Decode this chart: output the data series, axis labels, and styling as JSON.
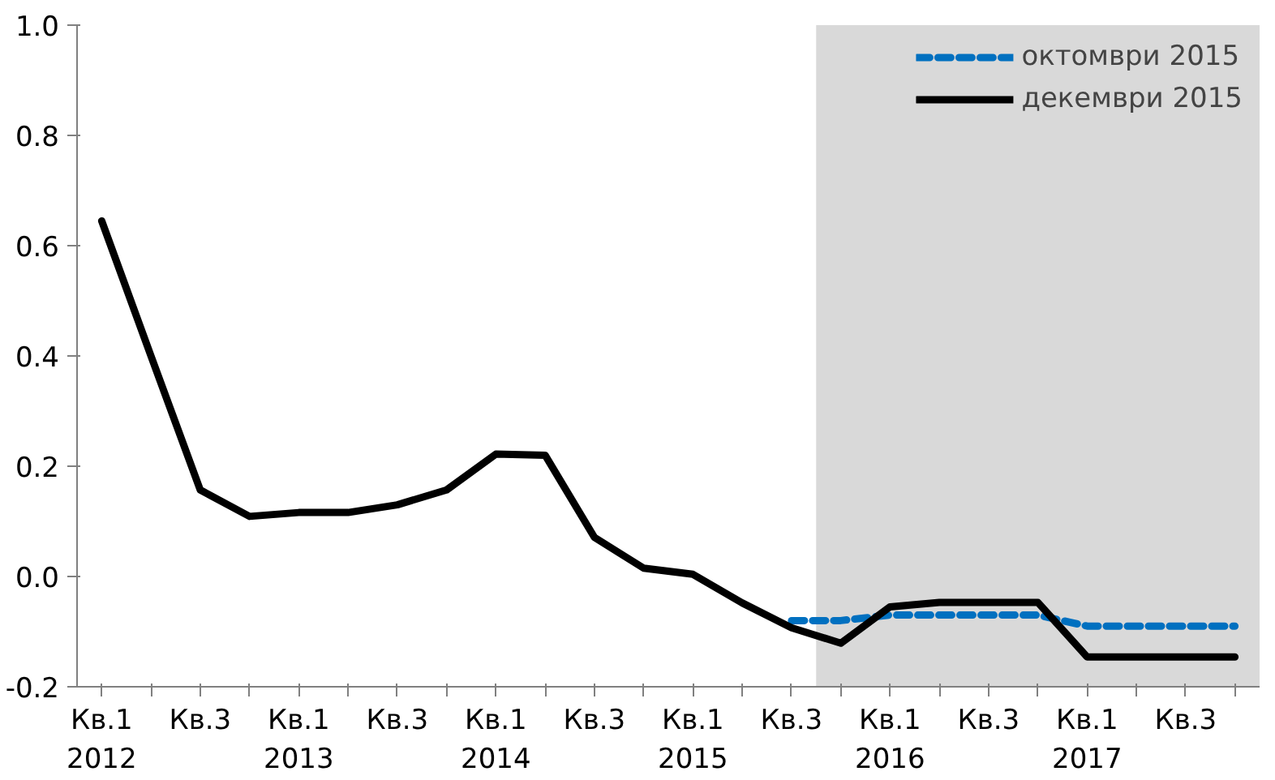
{
  "chart_data": {
    "type": "line",
    "categories": [
      "Кв.1\n2012",
      null,
      "Кв.3",
      null,
      "Кв.1\n2013",
      null,
      "Кв.3",
      null,
      "Кв.1\n2014",
      null,
      "Кв.3",
      null,
      "Кв.1\n2015",
      null,
      "Кв.3",
      null,
      "Кв.1\n2016",
      null,
      "Кв.3",
      null,
      "Кв.1\n2017",
      null,
      "Кв.3",
      null
    ],
    "series": [
      {
        "name": "октомври 2015",
        "color": "#0070c0",
        "line_style": "dashed",
        "values": [
          null,
          null,
          null,
          null,
          null,
          null,
          null,
          null,
          null,
          null,
          null,
          null,
          null,
          null,
          -0.08,
          -0.08,
          -0.07,
          -0.07,
          -0.07,
          -0.07,
          -0.09,
          -0.09,
          -0.09,
          -0.09
        ]
      },
      {
        "name": "декември 2015",
        "color": "#000000",
        "line_style": "solid",
        "values": [
          0.645,
          0.4,
          0.157,
          0.109,
          0.116,
          0.116,
          0.13,
          0.157,
          0.222,
          0.22,
          0.071,
          0.015,
          0.004,
          -0.048,
          -0.093,
          -0.121,
          -0.055,
          -0.047,
          -0.047,
          -0.047,
          -0.146,
          -0.146,
          -0.146,
          -0.146
        ]
      }
    ],
    "ylim": [
      -0.2,
      1.0
    ],
    "yticks": [
      -0.2,
      {
        "value": 0,
        "label": "0.0"
      },
      0.2,
      0.4,
      0.6,
      0.8,
      {
        "value": 1,
        "label": "1.0"
      }
    ],
    "grid": false,
    "legend": "top right",
    "marker": "none"
  }
}
